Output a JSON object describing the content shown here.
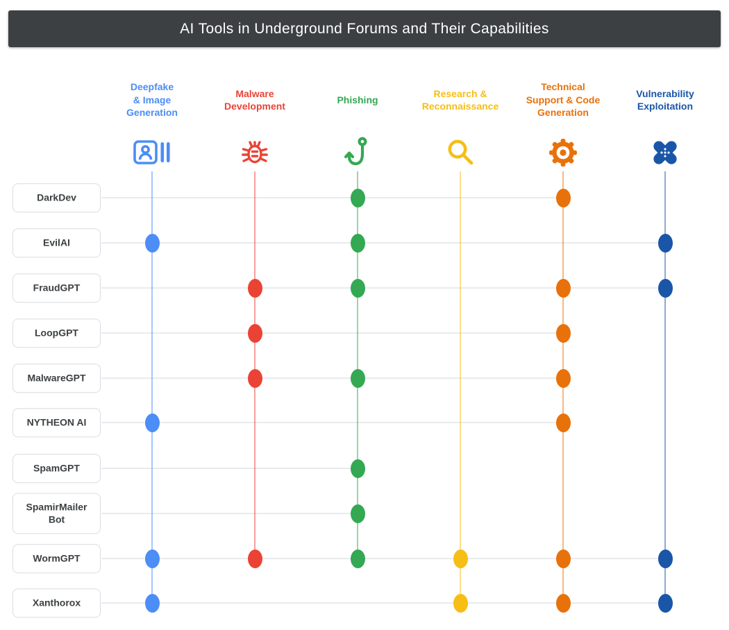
{
  "title": "AI Tools in Underground Forums and Their Capabilities",
  "chart_data": {
    "type": "scatter",
    "subtype": "capability-dot-matrix",
    "title": "AI Tools in Underground Forums and Their Capabilities",
    "grid": false,
    "legend_position": "top",
    "title_bar_color": "#3C4043",
    "row_line_color": "#E8EAED",
    "row_label_text_color": "#3C4043",
    "columns": [
      {
        "name": "Deepfake & Image Generation",
        "label": "Deepfake\n& Image\nGeneration",
        "color": "#4C8DF6",
        "icon": "portrait-image-icon"
      },
      {
        "name": "Malware Development",
        "label": "Malware\nDevelopment",
        "color": "#EA4335",
        "icon": "bug-icon"
      },
      {
        "name": "Phishing",
        "label": "Phishing",
        "color": "#34A853",
        "icon": "fish-hook-icon"
      },
      {
        "name": "Research & Reconnaissance",
        "label": "Research &\nReconnaissance",
        "color": "#F6BE16",
        "icon": "magnifier-icon"
      },
      {
        "name": "Technical Support & Code Generation",
        "label": "Technical\nSupport & Code\nGeneration",
        "color": "#E8710A",
        "icon": "gear-icon"
      },
      {
        "name": "Vulnerability Exploitation",
        "label": "Vulnerability\nExploitation",
        "color": "#1A56A8",
        "icon": "crossed-bandages-icon"
      }
    ],
    "rows": [
      {
        "label": "DarkDev",
        "capabilities": [
          "Phishing",
          "Technical Support & Code Generation"
        ]
      },
      {
        "label": "EvilAI",
        "capabilities": [
          "Deepfake & Image Generation",
          "Phishing",
          "Vulnerability Exploitation"
        ]
      },
      {
        "label": "FraudGPT",
        "capabilities": [
          "Malware Development",
          "Phishing",
          "Technical Support & Code Generation",
          "Vulnerability Exploitation"
        ]
      },
      {
        "label": "LoopGPT",
        "capabilities": [
          "Malware Development",
          "Technical Support & Code Generation"
        ]
      },
      {
        "label": "MalwareGPT",
        "capabilities": [
          "Malware Development",
          "Phishing",
          "Technical Support & Code Generation"
        ]
      },
      {
        "label": "NYTHEON AI",
        "capabilities": [
          "Deepfake & Image Generation",
          "Technical Support & Code Generation"
        ]
      },
      {
        "label": "SpamGPT",
        "capabilities": [
          "Phishing"
        ]
      },
      {
        "label": "SpamirMailer\nBot",
        "capabilities": [
          "Phishing"
        ]
      },
      {
        "label": "WormGPT",
        "capabilities": [
          "Deepfake & Image Generation",
          "Malware Development",
          "Phishing",
          "Research & Reconnaissance",
          "Technical Support & Code Generation",
          "Vulnerability Exploitation"
        ]
      },
      {
        "label": "Xanthorox",
        "capabilities": [
          "Deepfake & Image Generation",
          "Research & Reconnaissance",
          "Technical Support & Code Generation",
          "Vulnerability Exploitation"
        ]
      }
    ]
  }
}
